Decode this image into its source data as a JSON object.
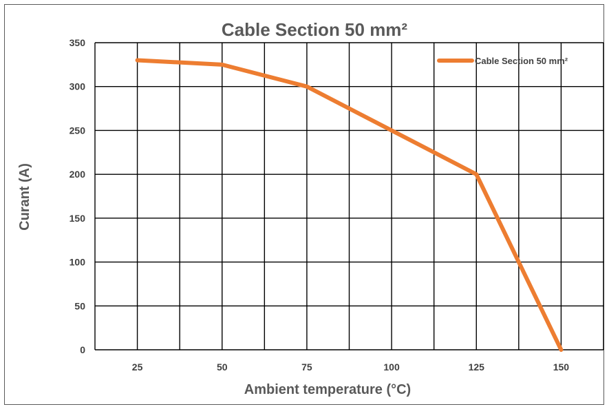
{
  "chart_data": {
    "type": "line",
    "title": "Cable Section 50 mm²",
    "xlabel": "Ambient temperature (°C)",
    "ylabel": "Curant (A)",
    "x_ticks": [
      "25",
      "50",
      "75",
      "100",
      "125",
      "150"
    ],
    "y_ticks": [
      "0",
      "50",
      "100",
      "150",
      "200",
      "250",
      "300",
      "350"
    ],
    "xlim": [
      12.5,
      162.5
    ],
    "ylim": [
      0,
      350
    ],
    "grid": true,
    "legend_position": "top-right",
    "series": [
      {
        "name": "Cable Section 50 mm²",
        "color": "#ED7D31",
        "x": [
          25,
          50,
          75,
          100,
          125,
          150
        ],
        "y": [
          330,
          325,
          300,
          250,
          200,
          0
        ]
      }
    ]
  }
}
